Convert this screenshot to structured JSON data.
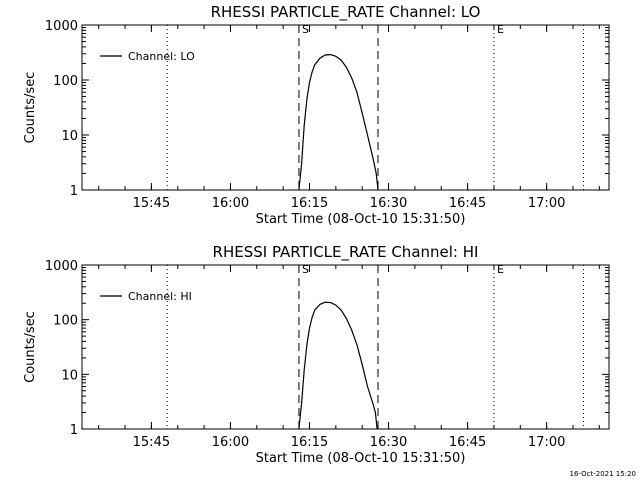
{
  "chart_data": [
    {
      "type": "line",
      "title": "RHESSI PARTICLE_RATE Channel: LO",
      "xlabel": "Start Time (08-Oct-10 15:31:50)",
      "ylabel": "Counts/sec",
      "yscale": "log",
      "ylim": [
        1,
        1000
      ],
      "xlim": [
        "15:31:50",
        "17:11:50"
      ],
      "x_ticks": [
        "15:45",
        "16:00",
        "16:15",
        "16:30",
        "16:45",
        "17:00"
      ],
      "y_ticks": [
        "1",
        "10",
        "100",
        "1000"
      ],
      "legend": {
        "placement": "top-left",
        "entries": [
          "Channel: LO"
        ]
      },
      "markers": [
        {
          "time": "16:13",
          "style": "dashed",
          "label": "S"
        },
        {
          "time": "16:28",
          "style": "dashed",
          "label": ""
        },
        {
          "time": "16:50",
          "style": "dotted",
          "label": "E"
        },
        {
          "time": "15:48",
          "style": "dotted",
          "label": ""
        },
        {
          "time": "17:07",
          "style": "dotted",
          "label": ""
        }
      ],
      "series": [
        {
          "name": "Channel: LO",
          "x": [
            "16:13:00",
            "16:13:30",
            "16:14:00",
            "16:14:30",
            "16:15:00",
            "16:15:30",
            "16:16:00",
            "16:17:00",
            "16:18:00",
            "16:19:00",
            "16:20:00",
            "16:21:00",
            "16:22:00",
            "16:23:00",
            "16:24:00",
            "16:25:00",
            "16:26:00",
            "16:27:00",
            "16:27:40",
            "16:28:00"
          ],
          "y": [
            1,
            3,
            15,
            45,
            90,
            140,
            190,
            250,
            285,
            290,
            270,
            230,
            170,
            110,
            60,
            25,
            10,
            4,
            2,
            1
          ]
        }
      ]
    },
    {
      "type": "line",
      "title": "RHESSI PARTICLE_RATE Channel: HI",
      "xlabel": "Start Time (08-Oct-10 15:31:50)",
      "ylabel": "Counts/sec",
      "yscale": "log",
      "ylim": [
        1,
        1000
      ],
      "xlim": [
        "15:31:50",
        "17:11:50"
      ],
      "x_ticks": [
        "15:45",
        "16:00",
        "16:15",
        "16:30",
        "16:45",
        "17:00"
      ],
      "y_ticks": [
        "1",
        "10",
        "100",
        "1000"
      ],
      "legend": {
        "placement": "top-left",
        "entries": [
          "Channel: HI"
        ]
      },
      "markers": [
        {
          "time": "16:13",
          "style": "dashed",
          "label": "S"
        },
        {
          "time": "16:28",
          "style": "dashed",
          "label": ""
        },
        {
          "time": "16:50",
          "style": "dotted",
          "label": "E"
        },
        {
          "time": "15:48",
          "style": "dotted",
          "label": ""
        },
        {
          "time": "17:07",
          "style": "dotted",
          "label": ""
        }
      ],
      "series": [
        {
          "name": "Channel: HI",
          "x": [
            "16:13:00",
            "16:13:30",
            "16:14:00",
            "16:14:30",
            "16:15:00",
            "16:15:30",
            "16:16:00",
            "16:17:00",
            "16:18:00",
            "16:19:00",
            "16:20:00",
            "16:21:00",
            "16:22:00",
            "16:23:00",
            "16:24:00",
            "16:25:00",
            "16:26:00",
            "16:27:00",
            "16:27:30",
            "16:27:50"
          ],
          "y": [
            1,
            3,
            12,
            35,
            70,
            110,
            150,
            190,
            210,
            205,
            185,
            150,
            105,
            65,
            35,
            15,
            6,
            3,
            2,
            1
          ]
        }
      ]
    }
  ],
  "footer": {
    "timestamp": "16-Oct-2021 15:20"
  },
  "colors": {
    "line": "#000000",
    "background": "#ffffff"
  }
}
